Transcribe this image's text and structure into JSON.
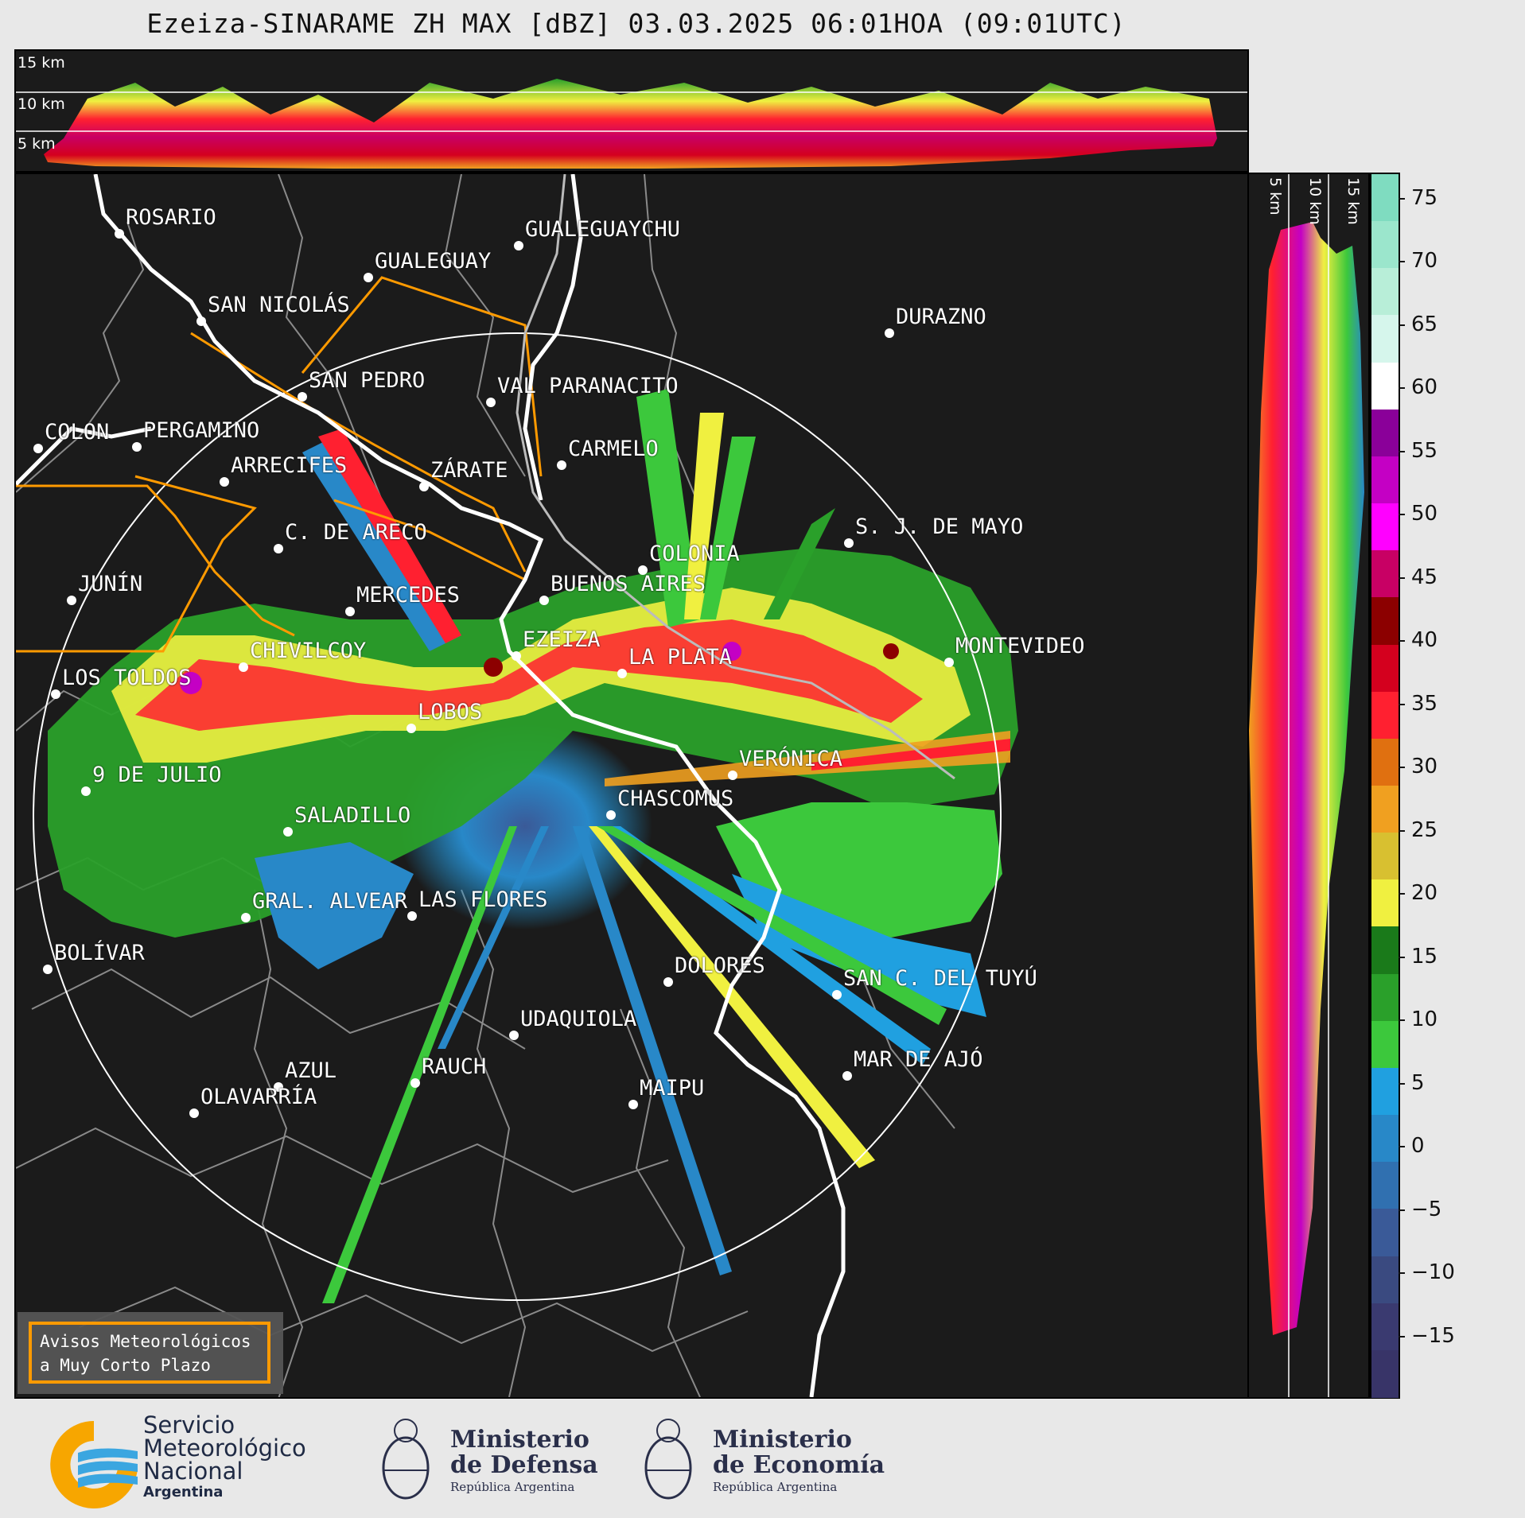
{
  "title": "Ezeiza-SINARAME ZH MAX [dBZ] 03.03.2025 06:01HOA (09:01UTC)",
  "height_labels": {
    "h15": "15 km",
    "h10": "10 km",
    "h5": "5 km"
  },
  "cities": [
    {
      "name": "ROSARIO",
      "dot": true
    },
    {
      "name": "GUALEGUAYCHU",
      "dot": true
    },
    {
      "name": "GUALEGUAY",
      "dot": true
    },
    {
      "name": "SAN NICOLÁS",
      "dot": true
    },
    {
      "name": "DURAZNO",
      "dot": true
    },
    {
      "name": "SAN PEDRO",
      "dot": true
    },
    {
      "name": "VAL PARANACITO",
      "dot": true
    },
    {
      "name": "COLON",
      "dot": true
    },
    {
      "name": "PERGAMINO",
      "dot": true
    },
    {
      "name": "CARMELO",
      "dot": true
    },
    {
      "name": "ARRECIFES",
      "dot": true
    },
    {
      "name": "ZÁRATE",
      "dot": true
    },
    {
      "name": "C. DE ARECO",
      "dot": true
    },
    {
      "name": "S. J. DE MAYO",
      "dot": true
    },
    {
      "name": "COLONIA",
      "dot": true
    },
    {
      "name": "JUNÍN",
      "dot": true
    },
    {
      "name": "BUENOS AIRES",
      "dot": true
    },
    {
      "name": "MERCEDES",
      "dot": true
    },
    {
      "name": "EZEIZA",
      "dot": true
    },
    {
      "name": "MONTEVIDEO",
      "dot": true
    },
    {
      "name": "CHIVILCOY",
      "dot": true
    },
    {
      "name": "LA PLATA",
      "dot": true
    },
    {
      "name": "LOS TOLDOS",
      "dot": true
    },
    {
      "name": "LOBOS",
      "dot": true
    },
    {
      "name": "VERÓNICA",
      "dot": true
    },
    {
      "name": "9 DE JULIO",
      "dot": true
    },
    {
      "name": "CHASCOMUS",
      "dot": true
    },
    {
      "name": "SALADILLO",
      "dot": true
    },
    {
      "name": "GRAL. ALVEAR",
      "dot": true
    },
    {
      "name": "LAS FLORES",
      "dot": true
    },
    {
      "name": "BOLÍVAR",
      "dot": true
    },
    {
      "name": "DOLORES",
      "dot": true
    },
    {
      "name": "SAN C. DEL TUYÚ",
      "dot": true
    },
    {
      "name": "UDAQUIOLA",
      "dot": true
    },
    {
      "name": "MAR DE AJÓ",
      "dot": true
    },
    {
      "name": "RAUCH",
      "dot": true
    },
    {
      "name": "AZUL",
      "dot": true
    },
    {
      "name": "OLAVARRÍA",
      "dot": true
    },
    {
      "name": "MAIPU",
      "dot": true
    }
  ],
  "colorbar": {
    "ticks": [
      "75",
      "70",
      "65",
      "60",
      "55",
      "50",
      "45",
      "40",
      "35",
      "30",
      "25",
      "20",
      "15",
      "10",
      "5",
      "0",
      "−5",
      "−10",
      "−15"
    ],
    "colors": [
      "#7fdcc0",
      "#9be6cc",
      "#b8eed8",
      "#d6f6ec",
      "#ffffff",
      "#8a0099",
      "#c400c4",
      "#ff00ff",
      "#c80064",
      "#8c0000",
      "#d4001e",
      "#ff2030",
      "#e07010",
      "#f0a020",
      "#d8c030",
      "#f0f040",
      "#1a7a1a",
      "#2aa02a",
      "#3cc83c",
      "#20a0e0",
      "#2888c8",
      "#3070b0",
      "#3a5a98",
      "#3a4a80",
      "#3a3a70",
      "#383468"
    ],
    "min": -20,
    "max": 77
  },
  "legend": {
    "line1": "Avisos Meteorológicos",
    "line2": "a Muy Corto Plazo"
  },
  "footer": {
    "smn": {
      "l1": "Servicio",
      "l2": "Meteorológico",
      "l3": "Nacional",
      "l4": "Argentina"
    },
    "defensa": {
      "l1": "Ministerio",
      "l2": "de Defensa",
      "l3": "República Argentina"
    },
    "economia": {
      "l1": "Ministerio",
      "l2": "de Economía",
      "l3": "República Argentina"
    }
  },
  "colors": {
    "background": "#1b1b1b",
    "range_ring": "#ffffff",
    "warning_polygon": "#ff9a00",
    "coast": "#ffffff",
    "borders": "#8a8a8a"
  }
}
